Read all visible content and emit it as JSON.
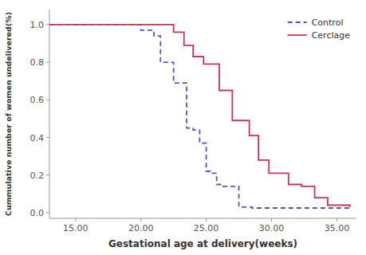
{
  "chart_data": {
    "type": "step",
    "xlabel": "Gestational age at delivery(weeks)",
    "ylabel": "Cummulative number of women undelivered(%)",
    "series": [
      {
        "name": "Control",
        "color": "#5555bb",
        "line_style": "dashed",
        "x": [
          13.0,
          19.5,
          20.0,
          21.0,
          21.5,
          22.5,
          23.5,
          24.0,
          24.5,
          25.0,
          25.3,
          25.8,
          26.3,
          27.5,
          28.5,
          36.0
        ],
        "values": [
          1.0,
          1.0,
          0.97,
          0.94,
          0.8,
          0.69,
          0.45,
          0.44,
          0.37,
          0.22,
          0.21,
          0.15,
          0.14,
          0.03,
          0.025,
          0.025
        ]
      },
      {
        "name": "Cerclage",
        "color": "#cc3355",
        "line_style": "solid",
        "x": [
          13.0,
          21.5,
          22.5,
          23.3,
          24.0,
          24.8,
          26.0,
          27.0,
          28.3,
          29.0,
          29.8,
          30.5,
          31.3,
          32.3,
          33.3,
          34.3,
          35.3,
          36.0
        ],
        "values": [
          1.0,
          1.0,
          0.96,
          0.89,
          0.83,
          0.79,
          0.65,
          0.49,
          0.41,
          0.28,
          0.21,
          0.21,
          0.15,
          0.14,
          0.08,
          0.04,
          0.04,
          0.03
        ]
      }
    ],
    "xlim": [
      13.0,
      36.5
    ],
    "ylim": [
      -0.03,
      1.08
    ],
    "xticks": [
      {
        "value": 15.0,
        "label": "15.00"
      },
      {
        "value": 20.0,
        "label": "20.00"
      },
      {
        "value": 25.0,
        "label": "25.00"
      },
      {
        "value": 30.0,
        "label": "30.00"
      },
      {
        "value": 35.0,
        "label": "35.00"
      }
    ],
    "yticks": [
      {
        "value": 0.0,
        "label": "0.0"
      },
      0.2,
      0.4,
      0.6,
      0.8,
      {
        "value": 1.0,
        "label": "1.0"
      }
    ],
    "grid": false,
    "legend": "upper-right"
  }
}
